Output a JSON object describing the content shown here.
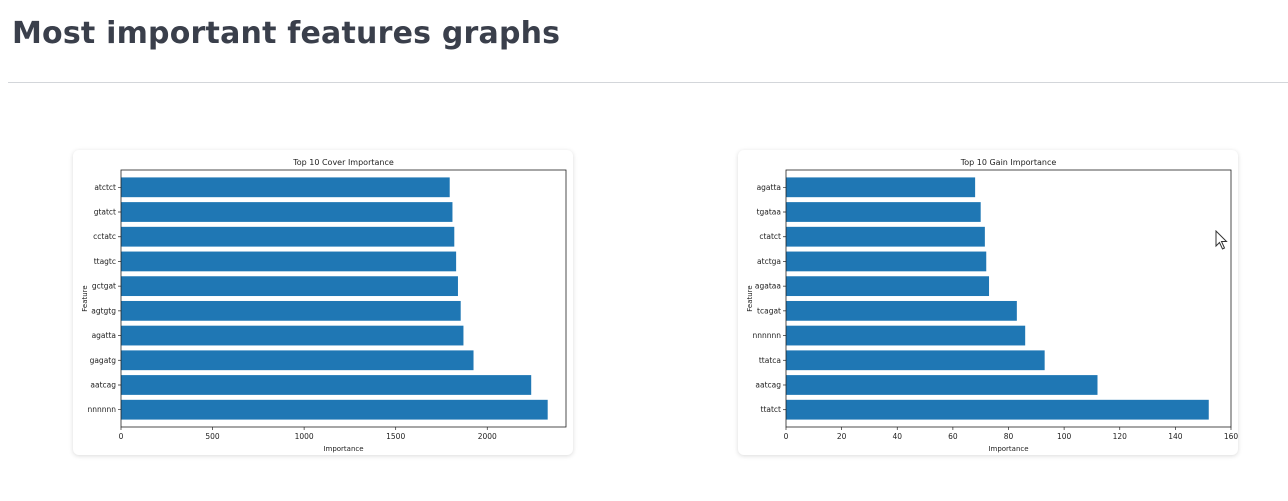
{
  "page": {
    "title": "Most important features graphs"
  },
  "chart_data": [
    {
      "type": "bar",
      "orientation": "horizontal",
      "title": "Top 10 Cover Importance",
      "xlabel": "Importance",
      "ylabel": "Feature",
      "categories": [
        "atctct",
        "gtatct",
        "cctatc",
        "ttagtc",
        "gctgat",
        "agtgtg",
        "agatta",
        "gagatg",
        "aatcag",
        "nnnnnn"
      ],
      "values": [
        1795,
        1810,
        1820,
        1830,
        1840,
        1855,
        1870,
        1925,
        2240,
        2330
      ],
      "xlim": [
        0,
        2430
      ],
      "xticks": [
        0,
        500,
        1000,
        1500,
        2000
      ],
      "bar_color": "#1f77b4",
      "grid": false
    },
    {
      "type": "bar",
      "orientation": "horizontal",
      "title": "Top 10 Gain Importance",
      "xlabel": "Importance",
      "ylabel": "Feature",
      "categories": [
        "agatta",
        "tgataa",
        "ctatct",
        "atctga",
        "agataa",
        "tcagat",
        "nnnnnn",
        "ttatca",
        "aatcag",
        "ttatct"
      ],
      "values": [
        68,
        70,
        71.5,
        72,
        73,
        83,
        86,
        93,
        112,
        152
      ],
      "xlim": [
        0,
        160
      ],
      "xticks": [
        0,
        20,
        40,
        60,
        80,
        100,
        120,
        140,
        160
      ],
      "bar_color": "#1f77b4",
      "grid": false
    }
  ]
}
